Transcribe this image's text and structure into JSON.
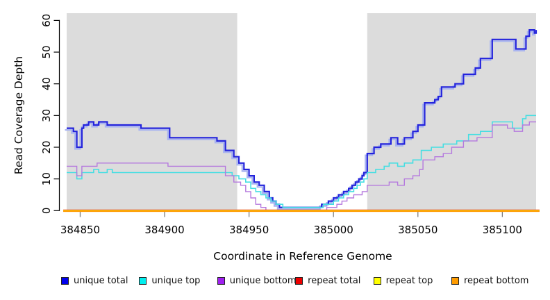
{
  "chart_data": {
    "type": "line",
    "subtype": "step-after",
    "title": "",
    "xlabel": "Coordinate in Reference Genome",
    "ylabel": "Read Coverage Depth",
    "x_ticks": [
      384850,
      384900,
      384950,
      385000,
      385050,
      385100
    ],
    "y_ticks": [
      0,
      10,
      20,
      30,
      40,
      50,
      60
    ],
    "x_range": [
      384842,
      385120
    ],
    "y_range": [
      0,
      62.3
    ],
    "grid": false,
    "legend_position": "bottom",
    "background_color": "#ffffff",
    "shaded_region_color": "#dcdcdc",
    "shaded_regions": [
      {
        "x0": 384842,
        "x1": 384943
      },
      {
        "x0": 385020,
        "x1": 385120
      }
    ],
    "series": [
      {
        "name": "unique total",
        "color": "#2323dc",
        "shadow_color": "#a9b4f0",
        "width": 2.2,
        "points": [
          [
            384842,
            26
          ],
          [
            384846,
            25
          ],
          [
            384848,
            20
          ],
          [
            384851,
            26
          ],
          [
            384852,
            27
          ],
          [
            384855,
            28
          ],
          [
            384858,
            27
          ],
          [
            384861,
            28
          ],
          [
            384866,
            27
          ],
          [
            384886,
            26
          ],
          [
            384903,
            23
          ],
          [
            384931,
            22
          ],
          [
            384936,
            19
          ],
          [
            384941,
            17
          ],
          [
            384944,
            15
          ],
          [
            384947,
            13
          ],
          [
            384950,
            11
          ],
          [
            384953,
            9
          ],
          [
            384956,
            8
          ],
          [
            384959,
            6
          ],
          [
            384962,
            4
          ],
          [
            384964,
            3
          ],
          [
            384966,
            2
          ],
          [
            384968,
            1
          ],
          [
            384993,
            2
          ],
          [
            384997,
            3
          ],
          [
            385000,
            4
          ],
          [
            385003,
            5
          ],
          [
            385006,
            6
          ],
          [
            385009,
            7
          ],
          [
            385011,
            8
          ],
          [
            385013,
            9
          ],
          [
            385015,
            10
          ],
          [
            385017,
            11
          ],
          [
            385018,
            12
          ],
          [
            385020,
            18
          ],
          [
            385024,
            20
          ],
          [
            385028,
            21
          ],
          [
            385034,
            23
          ],
          [
            385038,
            21
          ],
          [
            385042,
            23
          ],
          [
            385047,
            25
          ],
          [
            385050,
            27
          ],
          [
            385054,
            34
          ],
          [
            385060,
            35
          ],
          [
            385062,
            36
          ],
          [
            385064,
            39
          ],
          [
            385072,
            40
          ],
          [
            385077,
            43
          ],
          [
            385084,
            45
          ],
          [
            385087,
            48
          ],
          [
            385094,
            54
          ],
          [
            385108,
            51
          ],
          [
            385114,
            55
          ],
          [
            385116,
            57
          ],
          [
            385119,
            56
          ],
          [
            385120,
            57
          ]
        ]
      },
      {
        "name": "unique top",
        "color": "#45dee2",
        "width": 1.6,
        "points": [
          [
            384842,
            12
          ],
          [
            384848,
            10
          ],
          [
            384851,
            12
          ],
          [
            384858,
            13
          ],
          [
            384861,
            12
          ],
          [
            384866,
            13
          ],
          [
            384869,
            12
          ],
          [
            384940,
            11
          ],
          [
            384944,
            10
          ],
          [
            384948,
            9
          ],
          [
            384951,
            7
          ],
          [
            384954,
            6
          ],
          [
            384957,
            5
          ],
          [
            384960,
            4
          ],
          [
            384963,
            3
          ],
          [
            384966,
            2
          ],
          [
            384970,
            1
          ],
          [
            384994,
            2
          ],
          [
            385000,
            3
          ],
          [
            385003,
            4
          ],
          [
            385006,
            5
          ],
          [
            385009,
            6
          ],
          [
            385012,
            7
          ],
          [
            385014,
            8
          ],
          [
            385016,
            9
          ],
          [
            385018,
            10
          ],
          [
            385020,
            12
          ],
          [
            385025,
            13
          ],
          [
            385030,
            14
          ],
          [
            385033,
            15
          ],
          [
            385038,
            14
          ],
          [
            385042,
            15
          ],
          [
            385047,
            16
          ],
          [
            385052,
            19
          ],
          [
            385058,
            20
          ],
          [
            385065,
            21
          ],
          [
            385073,
            22
          ],
          [
            385080,
            24
          ],
          [
            385087,
            25
          ],
          [
            385094,
            28
          ],
          [
            385106,
            26
          ],
          [
            385112,
            29
          ],
          [
            385114,
            30
          ]
        ]
      },
      {
        "name": "unique bottom",
        "color": "#b579de",
        "width": 1.4,
        "points": [
          [
            384842,
            14
          ],
          [
            384848,
            11
          ],
          [
            384851,
            14
          ],
          [
            384860,
            15
          ],
          [
            384902,
            14
          ],
          [
            384936,
            11
          ],
          [
            384941,
            9
          ],
          [
            384945,
            8
          ],
          [
            384948,
            6
          ],
          [
            384951,
            4
          ],
          [
            384954,
            2
          ],
          [
            384957,
            1
          ],
          [
            384960,
            0
          ],
          [
            384996,
            1
          ],
          [
            385002,
            2
          ],
          [
            385005,
            3
          ],
          [
            385008,
            4
          ],
          [
            385012,
            5
          ],
          [
            385017,
            6
          ],
          [
            385020,
            8
          ],
          [
            385033,
            9
          ],
          [
            385038,
            8
          ],
          [
            385042,
            10
          ],
          [
            385047,
            11
          ],
          [
            385051,
            13
          ],
          [
            385053,
            16
          ],
          [
            385060,
            17
          ],
          [
            385065,
            18
          ],
          [
            385070,
            20
          ],
          [
            385077,
            22
          ],
          [
            385085,
            23
          ],
          [
            385094,
            27
          ],
          [
            385103,
            26
          ],
          [
            385107,
            25
          ],
          [
            385112,
            27
          ],
          [
            385116,
            28
          ]
        ]
      },
      {
        "name": "repeat total",
        "color": "#e03131",
        "width": 3,
        "points": [
          [
            384840,
            0
          ],
          [
            385122,
            0
          ]
        ]
      },
      {
        "name": "repeat top",
        "color": "#ffff00",
        "width": 1.6,
        "points": [
          [
            384840,
            0
          ],
          [
            385122,
            0
          ]
        ]
      },
      {
        "name": "repeat bottom",
        "color": "#ff9c00",
        "width": 1.8,
        "dy": 0.9,
        "points": [
          [
            384840,
            0
          ],
          [
            385122,
            0
          ]
        ]
      }
    ],
    "legend": {
      "items": [
        {
          "label": "unique total",
          "color": "#0000ee"
        },
        {
          "label": "unique top",
          "color": "#00eeee"
        },
        {
          "label": "unique bottom",
          "color": "#a020f0"
        },
        {
          "label": "repeat total",
          "color": "#ee0000"
        },
        {
          "label": "repeat top",
          "color": "#ffff00"
        },
        {
          "label": "repeat bottom",
          "color": "#ff9c00"
        }
      ]
    }
  }
}
